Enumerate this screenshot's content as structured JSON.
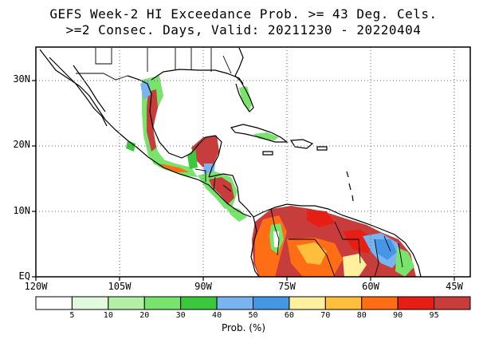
{
  "title_line1": "GEFS Week-2 HI Exceedance Prob. >= 43 Deg. Cels.",
  "title_line2": ">=2 Consec. Days, Valid: 20211230 - 20220404",
  "map": {
    "lon_range": [
      -120,
      -42
    ],
    "lat_range": [
      0,
      35
    ],
    "lat_labels": [
      {
        "lat": 30,
        "text": "30N"
      },
      {
        "lat": 20,
        "text": "20N"
      },
      {
        "lat": 10,
        "text": "10N"
      },
      {
        "lat": 0,
        "text": "EQ"
      }
    ],
    "lon_labels": [
      {
        "lon": -120,
        "text": "120W"
      },
      {
        "lon": -105,
        "text": "105W"
      },
      {
        "lon": -90,
        "text": "90W"
      },
      {
        "lon": -75,
        "text": "75W"
      },
      {
        "lon": -60,
        "text": "60W"
      },
      {
        "lon": -45,
        "text": "45W"
      }
    ],
    "grid": "dotted"
  },
  "colorbar": {
    "title": "Prob. (%)",
    "colors": [
      "#ffffff",
      "#e1f9dc",
      "#b3f0a6",
      "#78e46c",
      "#3cc83c",
      "#78b4f0",
      "#4696e6",
      "#fff0a0",
      "#ffbe3c",
      "#ff6e14",
      "#e61e14",
      "#c83c3c"
    ],
    "tick_labels": [
      "5",
      "10",
      "20",
      "30",
      "40",
      "50",
      "60",
      "70",
      "80",
      "90",
      "95"
    ]
  }
}
